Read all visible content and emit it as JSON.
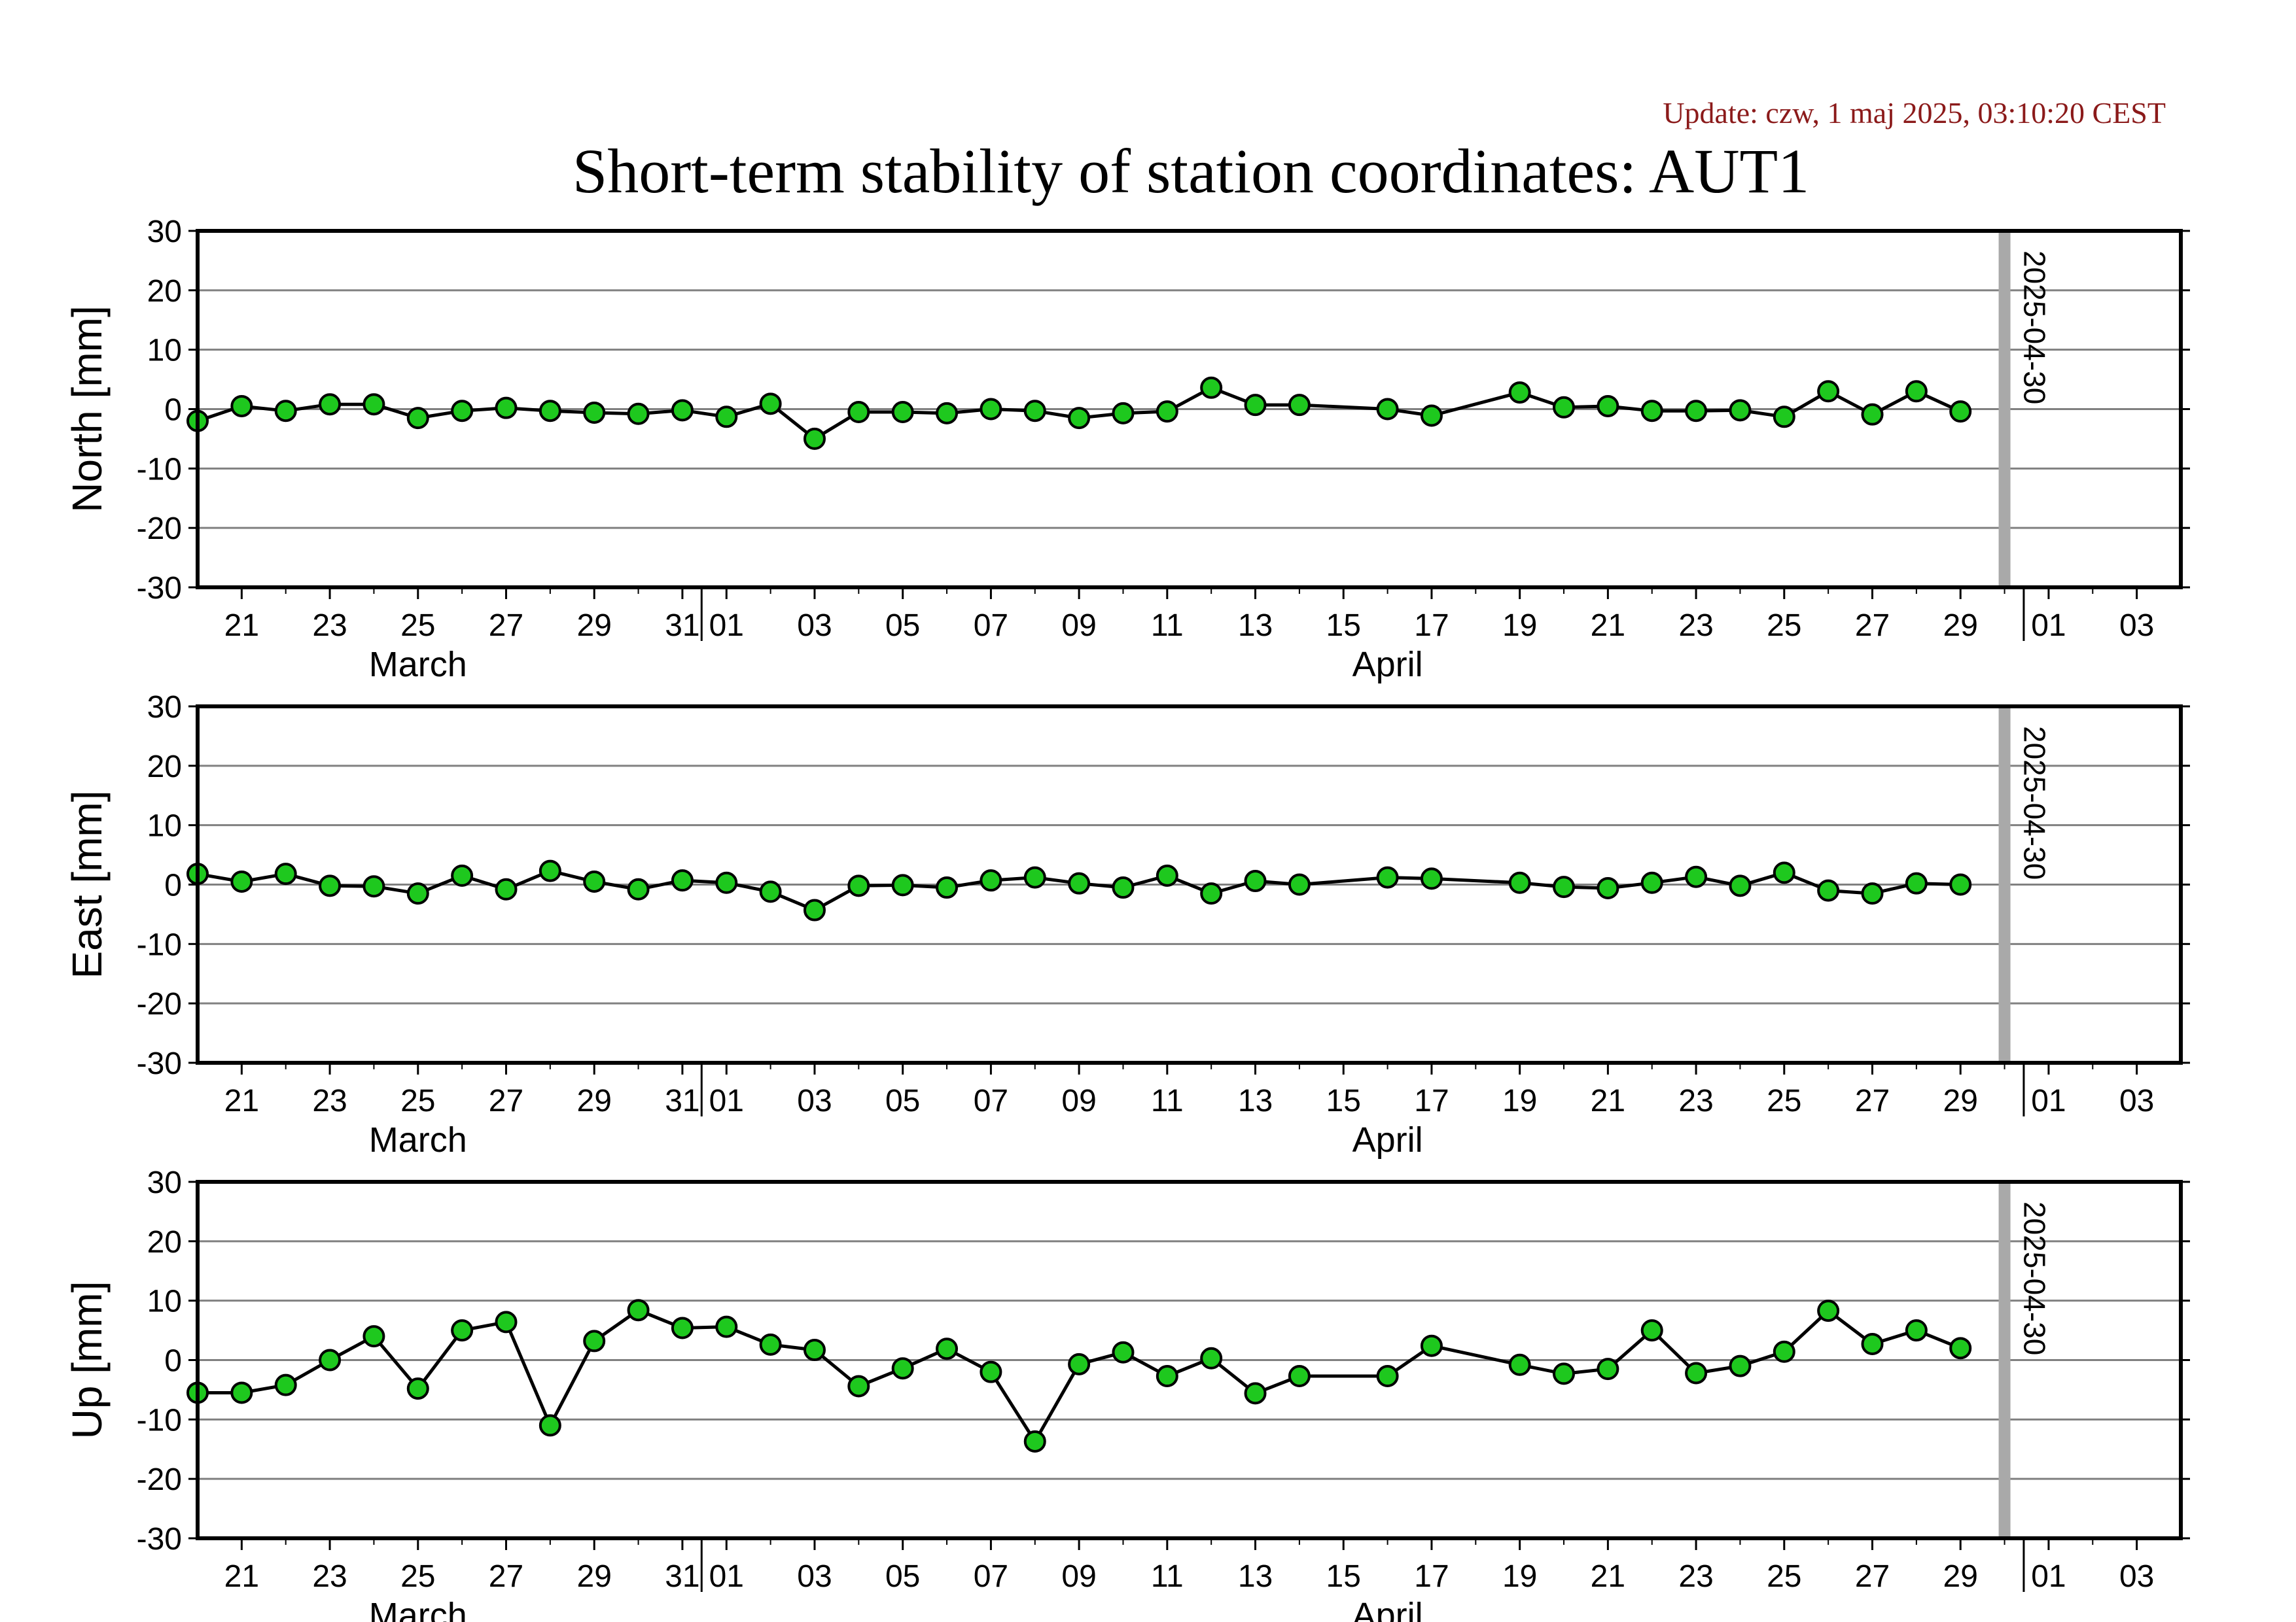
{
  "update_text": "Update: czw, 1 maj 2025, 03:10:20 CEST",
  "title": "Short-term stability of station coordinates: AUT1",
  "colors": {
    "update_text": "#8b1a1a",
    "marker": "#1ec81e",
    "line": "#000000",
    "grid": "#808080",
    "current_day_bar": "#a9a9a9"
  },
  "chart_data": [
    {
      "type": "line",
      "ylabel": "North [mm]",
      "ylim": [
        -30,
        30
      ],
      "yticks": [
        30,
        20,
        10,
        0,
        -10,
        -20,
        -30
      ],
      "xlim": [
        "2025-03-20",
        "2025-05-04"
      ],
      "grid": true,
      "current_day_label": "2025-04-30",
      "series": [
        {
          "x": [
            "2025-03-20",
            "2025-03-21",
            "2025-03-22",
            "2025-03-23",
            "2025-03-24",
            "2025-03-25",
            "2025-03-26",
            "2025-03-27",
            "2025-03-28",
            "2025-03-29",
            "2025-03-30",
            "2025-03-31",
            "2025-04-01",
            "2025-04-02",
            "2025-04-03",
            "2025-04-04",
            "2025-04-05",
            "2025-04-06",
            "2025-04-07",
            "2025-04-08",
            "2025-04-09",
            "2025-04-10",
            "2025-04-11",
            "2025-04-12",
            "2025-04-13",
            "2025-04-14",
            "2025-04-16",
            "2025-04-17",
            "2025-04-19",
            "2025-04-20",
            "2025-04-21",
            "2025-04-22",
            "2025-04-23",
            "2025-04-24",
            "2025-04-25",
            "2025-04-26",
            "2025-04-27",
            "2025-04-28",
            "2025-04-29"
          ],
          "y": [
            -2.0,
            0.5,
            -0.3,
            0.8,
            0.8,
            -1.5,
            -0.3,
            0.2,
            -0.3,
            -0.6,
            -0.8,
            -0.2,
            -1.3,
            0.9,
            -5.0,
            -0.5,
            -0.5,
            -0.7,
            0.0,
            -0.3,
            -1.5,
            -0.7,
            -0.4,
            3.6,
            0.7,
            0.7,
            0.0,
            -1.1,
            2.8,
            0.3,
            0.5,
            -0.3,
            -0.3,
            -0.2,
            -1.3,
            3.0,
            -0.9,
            3.0,
            -0.4
          ]
        }
      ]
    },
    {
      "type": "line",
      "ylabel": "East [mm]",
      "ylim": [
        -30,
        30
      ],
      "yticks": [
        30,
        20,
        10,
        0,
        -10,
        -20,
        -30
      ],
      "xlim": [
        "2025-03-20",
        "2025-05-04"
      ],
      "grid": true,
      "current_day_label": "2025-04-30",
      "series": [
        {
          "x": [
            "2025-03-20",
            "2025-03-21",
            "2025-03-22",
            "2025-03-23",
            "2025-03-24",
            "2025-03-25",
            "2025-03-26",
            "2025-03-27",
            "2025-03-28",
            "2025-03-29",
            "2025-03-30",
            "2025-03-31",
            "2025-04-01",
            "2025-04-02",
            "2025-04-03",
            "2025-04-04",
            "2025-04-05",
            "2025-04-06",
            "2025-04-07",
            "2025-04-08",
            "2025-04-09",
            "2025-04-10",
            "2025-04-11",
            "2025-04-12",
            "2025-04-13",
            "2025-04-14",
            "2025-04-16",
            "2025-04-17",
            "2025-04-19",
            "2025-04-20",
            "2025-04-21",
            "2025-04-22",
            "2025-04-23",
            "2025-04-24",
            "2025-04-25",
            "2025-04-26",
            "2025-04-27",
            "2025-04-28",
            "2025-04-29"
          ],
          "y": [
            1.8,
            0.5,
            1.8,
            -0.2,
            -0.3,
            -1.5,
            1.5,
            -0.8,
            2.3,
            0.5,
            -0.8,
            0.7,
            0.3,
            -1.2,
            -4.3,
            -0.2,
            -0.1,
            -0.5,
            0.7,
            1.2,
            0.2,
            -0.5,
            1.5,
            -1.5,
            0.6,
            0.0,
            1.2,
            1.0,
            0.3,
            -0.4,
            -0.6,
            0.3,
            1.3,
            -0.2,
            2.0,
            -1.0,
            -1.5,
            0.2,
            0.0
          ]
        }
      ]
    },
    {
      "type": "line",
      "ylabel": "Up [mm]",
      "ylim": [
        -30,
        30
      ],
      "yticks": [
        30,
        20,
        10,
        0,
        -10,
        -20,
        -30
      ],
      "xlim": [
        "2025-03-20",
        "2025-05-04"
      ],
      "grid": true,
      "current_day_label": "2025-04-30",
      "series": [
        {
          "x": [
            "2025-03-20",
            "2025-03-21",
            "2025-03-22",
            "2025-03-23",
            "2025-03-24",
            "2025-03-25",
            "2025-03-26",
            "2025-03-27",
            "2025-03-28",
            "2025-03-29",
            "2025-03-30",
            "2025-03-31",
            "2025-04-01",
            "2025-04-02",
            "2025-04-03",
            "2025-04-04",
            "2025-04-05",
            "2025-04-06",
            "2025-04-07",
            "2025-04-08",
            "2025-04-09",
            "2025-04-10",
            "2025-04-11",
            "2025-04-12",
            "2025-04-13",
            "2025-04-14",
            "2025-04-16",
            "2025-04-17",
            "2025-04-19",
            "2025-04-20",
            "2025-04-21",
            "2025-04-22",
            "2025-04-23",
            "2025-04-24",
            "2025-04-25",
            "2025-04-26",
            "2025-04-27",
            "2025-04-28",
            "2025-04-29"
          ],
          "y": [
            -5.5,
            -5.5,
            -4.2,
            0.0,
            4.0,
            -4.8,
            5.0,
            6.4,
            -11.0,
            3.2,
            8.4,
            5.4,
            5.6,
            2.6,
            1.7,
            -4.4,
            -1.4,
            1.9,
            -2.0,
            -13.7,
            -0.7,
            1.3,
            -2.7,
            0.3,
            -5.6,
            -2.7,
            -2.7,
            2.4,
            -0.8,
            -2.3,
            -1.5,
            5.0,
            -2.2,
            -1.0,
            1.4,
            8.3,
            2.7,
            5.0,
            2.0
          ]
        }
      ]
    }
  ],
  "x_axis": {
    "tick_labels": [
      {
        "date": "2025-03-21",
        "label": "21"
      },
      {
        "date": "2025-03-23",
        "label": "23"
      },
      {
        "date": "2025-03-25",
        "label": "25"
      },
      {
        "date": "2025-03-27",
        "label": "27"
      },
      {
        "date": "2025-03-29",
        "label": "29"
      },
      {
        "date": "2025-03-31",
        "label": "31"
      },
      {
        "date": "2025-04-01",
        "label": "01"
      },
      {
        "date": "2025-04-03",
        "label": "03"
      },
      {
        "date": "2025-04-05",
        "label": "05"
      },
      {
        "date": "2025-04-07",
        "label": "07"
      },
      {
        "date": "2025-04-09",
        "label": "09"
      },
      {
        "date": "2025-04-11",
        "label": "11"
      },
      {
        "date": "2025-04-13",
        "label": "13"
      },
      {
        "date": "2025-04-15",
        "label": "15"
      },
      {
        "date": "2025-04-17",
        "label": "17"
      },
      {
        "date": "2025-04-19",
        "label": "19"
      },
      {
        "date": "2025-04-21",
        "label": "21"
      },
      {
        "date": "2025-04-23",
        "label": "23"
      },
      {
        "date": "2025-04-25",
        "label": "25"
      },
      {
        "date": "2025-04-27",
        "label": "27"
      },
      {
        "date": "2025-04-29",
        "label": "29"
      },
      {
        "date": "2025-05-01",
        "label": "01"
      },
      {
        "date": "2025-05-03",
        "label": "03"
      }
    ],
    "month_labels": [
      {
        "date": "2025-03-25",
        "label": "March"
      },
      {
        "date": "2025-04-16",
        "label": "April"
      }
    ],
    "month_boundaries": [
      "2025-04-01",
      "2025-05-01"
    ]
  }
}
